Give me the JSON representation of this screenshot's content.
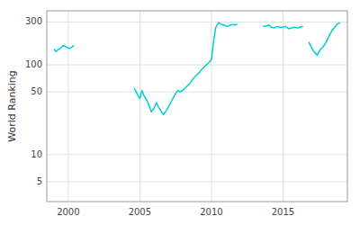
{
  "chart_data": {
    "type": "line",
    "ylabel": "World Ranking",
    "color": "#00CED1",
    "log": "y",
    "grid": true,
    "xlim": [
      1998.5,
      2019.5
    ],
    "xticks": [
      2000,
      2005,
      2010,
      2015
    ],
    "ylim": [
      3,
      400
    ],
    "yticks": [
      5,
      10,
      50,
      100,
      300
    ],
    "series": [
      {
        "x": [
          1999.0,
          1999.15,
          1999.3,
          1999.5,
          1999.65,
          1999.8,
          1999.95,
          2000.1,
          2000.25,
          2000.4
        ],
        "values": [
          150,
          140,
          148,
          155,
          165,
          160,
          155,
          152,
          158,
          165
        ]
      },
      {
        "x": [
          2004.6,
          2004.8,
          2005.0,
          2005.15,
          2005.3,
          2005.5,
          2005.65,
          2005.8,
          2006.0,
          2006.15,
          2006.3,
          2006.5,
          2006.65,
          2006.8,
          2007.0,
          2007.15,
          2007.3,
          2007.5,
          2007.65,
          2007.8,
          2008.0,
          2008.15,
          2008.3,
          2008.5,
          2008.65,
          2008.8,
          2009.0,
          2009.15,
          2009.3,
          2009.5,
          2009.65,
          2009.8,
          2010.0,
          2010.15,
          2010.3,
          2010.5,
          2010.65,
          2010.8,
          2011.0,
          2011.15,
          2011.3,
          2011.5,
          2011.65,
          2011.8
        ],
        "values": [
          55,
          48,
          42,
          52,
          45,
          40,
          35,
          30,
          33,
          38,
          34,
          30,
          28,
          30,
          34,
          38,
          42,
          48,
          52,
          50,
          52,
          55,
          58,
          62,
          68,
          72,
          78,
          82,
          88,
          95,
          100,
          105,
          115,
          180,
          260,
          295,
          285,
          280,
          272,
          268,
          276,
          282,
          278,
          285
        ]
      },
      {
        "x": [
          2013.6,
          2013.8,
          2014.0,
          2014.2,
          2014.4,
          2014.6,
          2014.8,
          2015.0,
          2015.2,
          2015.4,
          2015.6,
          2015.8,
          2016.0,
          2016.2,
          2016.4
        ],
        "values": [
          272,
          268,
          278,
          262,
          258,
          268,
          262,
          262,
          268,
          252,
          258,
          263,
          258,
          263,
          268
        ]
      },
      {
        "x": [
          2016.8,
          2017.0,
          2017.2,
          2017.4,
          2017.6,
          2017.8,
          2018.0,
          2018.2,
          2018.4,
          2018.6,
          2018.8,
          2019.0
        ],
        "values": [
          180,
          155,
          138,
          128,
          148,
          158,
          178,
          205,
          238,
          262,
          285,
          295
        ]
      }
    ]
  }
}
